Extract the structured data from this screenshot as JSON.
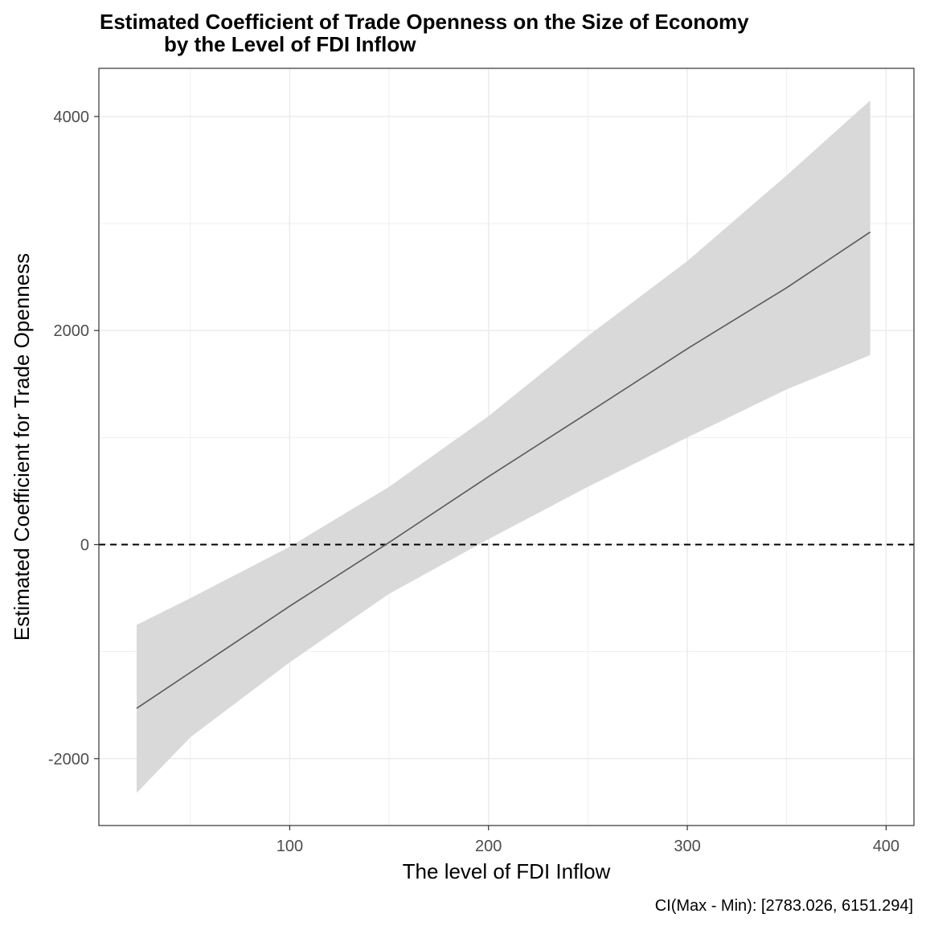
{
  "chart_data": {
    "type": "line",
    "title_lines": [
      "Estimated Coefficient of Trade Openness on the Size of Economy",
      "by the Level of FDI Inflow"
    ],
    "xlabel": "The level of FDI Inflow",
    "ylabel": "Estimated Coefficient for Trade Openness",
    "caption": "CI(Max - Min): [2783.026, 6151.294]",
    "xlim": [
      4,
      414
    ],
    "ylim": [
      -2625,
      4450
    ],
    "x_ticks": [
      100,
      200,
      300,
      400
    ],
    "x_tick_labels": [
      "100",
      "200",
      "300",
      "400"
    ],
    "y_ticks": [
      -2000,
      0,
      2000,
      4000
    ],
    "y_tick_labels": [
      "-2000",
      "0",
      "2000",
      "4000"
    ],
    "grid": true,
    "reference_line": {
      "y": 0,
      "style": "dashed"
    },
    "series": [
      {
        "x": [
          23,
          100,
          150,
          200,
          250,
          300,
          350,
          392
        ],
        "y": [
          -1530,
          -575,
          20,
          635,
          1230,
          1830,
          2400,
          2920
        ]
      }
    ],
    "band": {
      "x": [
        23,
        50,
        100,
        150,
        200,
        250,
        300,
        350,
        392
      ],
      "upper": [
        -750,
        -500,
        -20,
        540,
        1200,
        1950,
        2650,
        3450,
        4150
      ],
      "lower": [
        -2320,
        -1800,
        -1100,
        -460,
        50,
        540,
        1000,
        1450,
        1770
      ]
    },
    "colors": {
      "line": "#595959",
      "band": "#d9d9d9",
      "grid": "#ebebeb",
      "panel_border": "#333333",
      "reference_line": "#000000"
    }
  }
}
